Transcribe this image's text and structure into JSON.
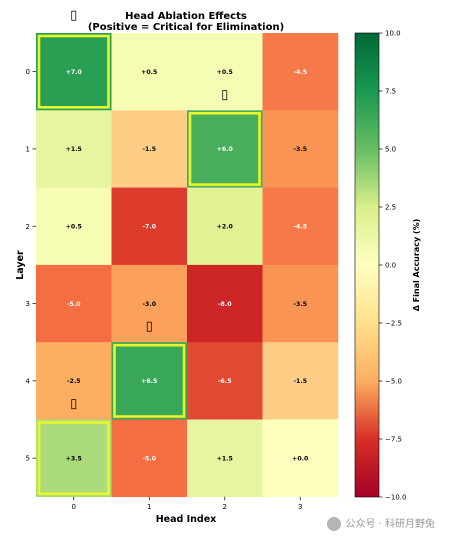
{
  "chart_data": {
    "type": "heatmap",
    "title": "Head Ablation Effects",
    "subtitle": "(Positive = Critical for Elimination)",
    "xlabel": "Head Index",
    "ylabel": "Layer",
    "x_categories": [
      "0",
      "1",
      "2",
      "3"
    ],
    "y_categories": [
      "0",
      "1",
      "2",
      "3",
      "4",
      "5"
    ],
    "values": [
      [
        7.0,
        0.5,
        0.5,
        -4.5
      ],
      [
        1.5,
        -1.5,
        6.0,
        -3.5
      ],
      [
        0.5,
        -7.0,
        2.0,
        -4.5
      ],
      [
        -5.0,
        -3.0,
        -8.0,
        -3.5
      ],
      [
        -2.5,
        6.5,
        -6.5,
        -1.5
      ],
      [
        3.5,
        -5.0,
        1.5,
        0.0
      ]
    ],
    "cell_labels": [
      [
        "+7.0",
        "+0.5",
        "+0.5",
        "-4.5"
      ],
      [
        "+1.5",
        "-1.5",
        "+6.0",
        "-3.5"
      ],
      [
        "+0.5",
        "-7.0",
        "+2.0",
        "-4.5"
      ],
      [
        "-5.0",
        "-3.0",
        "-8.0",
        "-3.5"
      ],
      [
        "-2.5",
        "+6.5",
        "-6.5",
        "-1.5"
      ],
      [
        "+3.5",
        "-5.0",
        "+1.5",
        "+0.0"
      ]
    ],
    "highlighted_cells": [
      [
        0,
        0
      ],
      [
        1,
        2
      ],
      [
        4,
        1
      ],
      [
        5,
        0
      ]
    ],
    "highlight_color": "#e8f52a",
    "colormap": "RdYlGn",
    "colorbar": {
      "label": "Δ Final Accuracy (%)",
      "range": [
        -10,
        10
      ],
      "ticks": [
        "10.0",
        "7.5",
        "5.0",
        "2.5",
        "0.0",
        "−2.5",
        "−5.0",
        "−7.5",
        "−10.0"
      ]
    },
    "markers": [
      {
        "row": 0,
        "col": 0,
        "glyph": "▯",
        "position": "above"
      },
      {
        "row": 0,
        "col": 2,
        "glyph": "▯",
        "position": "bottom"
      },
      {
        "row": 3,
        "col": 1,
        "glyph": "▯",
        "position": "bottom"
      },
      {
        "row": 4,
        "col": 0,
        "glyph": "▯",
        "position": "bottom"
      }
    ]
  },
  "watermark": "公众号 · 科研月野兔"
}
